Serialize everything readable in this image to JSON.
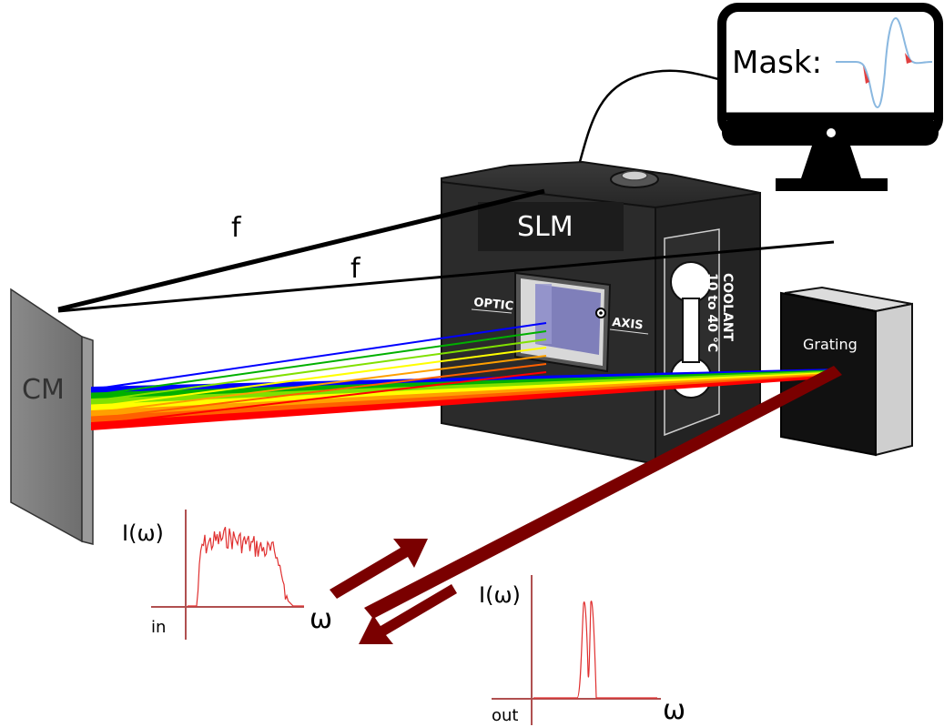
{
  "labels": {
    "slm": "SLM",
    "grating": "Grating",
    "cm": "CM",
    "f_upper": "f",
    "f_lower": "f",
    "mask": "Mask:",
    "optic": "OPTIC",
    "axis": "AXIS",
    "coolant_line1": "COOLANT",
    "coolant_line2": "10 to 40 °C"
  },
  "plots": {
    "input": {
      "ylabel": "I(ω)",
      "xlabel": "ω",
      "tag": "in"
    },
    "output": {
      "ylabel": "I(ω)",
      "xlabel": "ω",
      "tag": "out"
    }
  },
  "colors": {
    "beam": "#7a0000",
    "spectrum_trace": "#e03030",
    "axis": "#b05050",
    "device_body": "#2a2a2a",
    "mask_curve": "#8ab8e0",
    "mask_highlight": "#e04040"
  },
  "spectrum_colors": [
    "#0000ff",
    "#00b000",
    "#80e000",
    "#ffff00",
    "#ffa000",
    "#ff6000",
    "#ff0000"
  ]
}
